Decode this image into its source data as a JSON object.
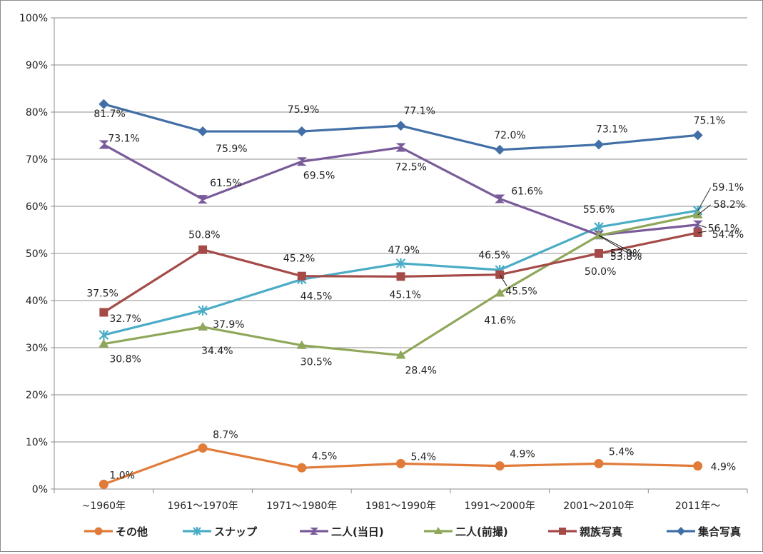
{
  "chart_data": {
    "type": "line",
    "categories": [
      "~1960年",
      "1961～1970年",
      "1971～1980年",
      "1981～1990年",
      "1991～2000年",
      "2001～2010年",
      "2011年～"
    ],
    "ylim": [
      0,
      100
    ],
    "yticks": [
      "0%",
      "10%",
      "20%",
      "30%",
      "40%",
      "50%",
      "60%",
      "70%",
      "80%",
      "90%",
      "100%"
    ],
    "grid": true,
    "legend": "bottom",
    "series": [
      {
        "name": "その他",
        "color": "#e07b39",
        "marker": "circle",
        "values": [
          1.0,
          8.7,
          4.5,
          5.4,
          4.9,
          5.4,
          4.9
        ],
        "labels": [
          "1.0%",
          "8.7%",
          "4.5%",
          "5.4%",
          "4.9%",
          "5.4%",
          "4.9%"
        ]
      },
      {
        "name": "スナップ",
        "color": "#4bacc6",
        "marker": "star",
        "values": [
          32.7,
          37.9,
          44.5,
          47.9,
          46.5,
          55.6,
          59.1
        ],
        "labels": [
          "32.7%",
          "37.9%",
          "44.5%",
          "47.9%",
          "46.5%",
          "55.6%",
          "59.1%"
        ]
      },
      {
        "name": "二人(当日)",
        "color": "#7a5b9a",
        "marker": "hourglass",
        "values": [
          73.1,
          61.5,
          69.5,
          72.5,
          61.6,
          53.9,
          56.1
        ],
        "labels": [
          "73.1%",
          "61.5%",
          "69.5%",
          "72.5%",
          "61.6%",
          "53.9%",
          "56.1%"
        ]
      },
      {
        "name": "二人(前撮)",
        "color": "#8fa75a",
        "marker": "triangle",
        "values": [
          30.8,
          34.4,
          30.5,
          28.4,
          41.6,
          53.8,
          58.2
        ],
        "labels": [
          "30.8%",
          "34.4%",
          "30.5%",
          "28.4%",
          "41.6%",
          "53.8%",
          "58.2%"
        ]
      },
      {
        "name": "親族写真",
        "color": "#a44b48",
        "marker": "square",
        "values": [
          37.5,
          50.8,
          45.2,
          45.1,
          45.5,
          50.0,
          54.4
        ],
        "labels": [
          "37.5%",
          "50.8%",
          "45.2%",
          "45.1%",
          "45.5%",
          "50.0%",
          "54.4%"
        ]
      },
      {
        "name": "集合写真",
        "color": "#416fa6",
        "marker": "diamond",
        "values": [
          81.7,
          75.9,
          75.9,
          77.1,
          72.0,
          73.1,
          75.1
        ],
        "labels": [
          "81.7%",
          "75.9%",
          "75.9%",
          "77.1%",
          "72.0%",
          "73.1%",
          "75.1%"
        ]
      }
    ]
  }
}
